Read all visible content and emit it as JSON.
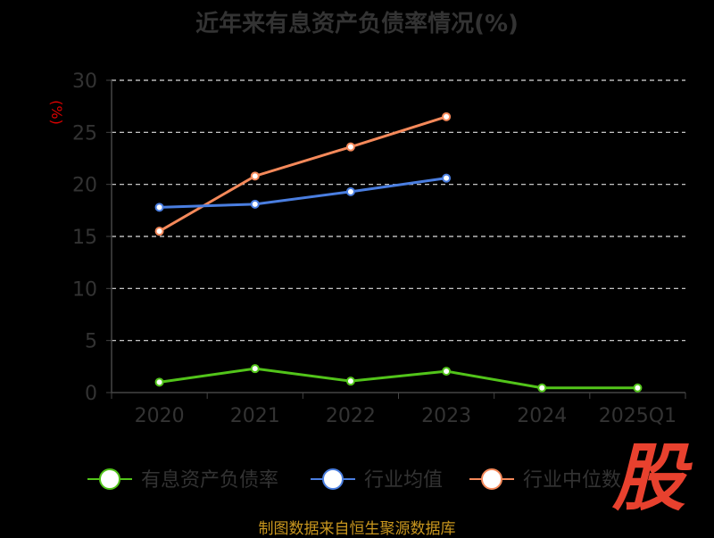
{
  "chart_data": {
    "type": "line",
    "title": "近年来有息资产负债率情况(%)",
    "ylabel": "(%)",
    "xlabel": "",
    "categories": [
      "2020",
      "2021",
      "2022",
      "2023",
      "2024",
      "2025Q1"
    ],
    "ylim": [
      0,
      30
    ],
    "yticks": [
      0,
      5,
      10,
      15,
      20,
      25,
      30
    ],
    "grid": true,
    "legend_position": "bottom",
    "series": [
      {
        "name": "有息资产负债率",
        "color": "#52c41a",
        "values": [
          1.0,
          2.3,
          1.1,
          2.05,
          0.45,
          0.45
        ]
      },
      {
        "name": "行业均值",
        "color": "#4a7ee0",
        "values": [
          17.8,
          18.1,
          19.3,
          20.6,
          null,
          null
        ]
      },
      {
        "name": "行业中位数",
        "color": "#f5895a",
        "values": [
          15.5,
          20.8,
          23.6,
          26.5,
          null,
          null
        ]
      }
    ]
  },
  "source": "制图数据来自恒生聚源数据库",
  "logo_text": "股"
}
